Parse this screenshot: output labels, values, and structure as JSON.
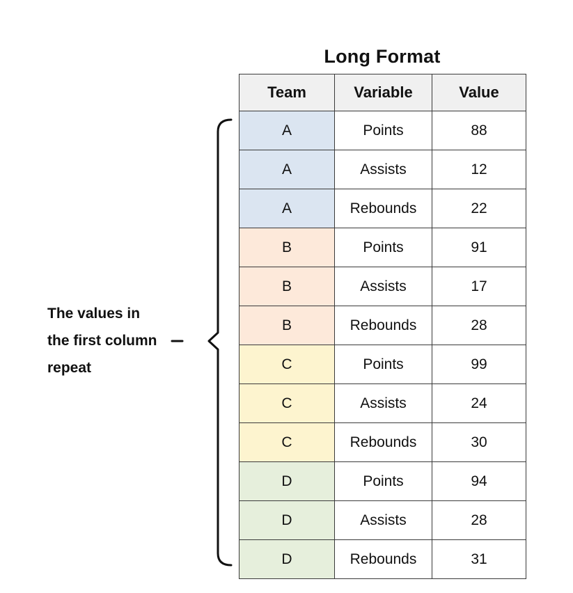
{
  "title": "Long Format",
  "annotation": {
    "line1": "The values in",
    "line2": "the first column",
    "line3": "repeat"
  },
  "table": {
    "headers": [
      "Team",
      "Variable",
      "Value"
    ],
    "rows": [
      {
        "team": "A",
        "variable": "Points",
        "value": "88"
      },
      {
        "team": "A",
        "variable": "Assists",
        "value": "12"
      },
      {
        "team": "A",
        "variable": "Rebounds",
        "value": "22"
      },
      {
        "team": "B",
        "variable": "Points",
        "value": "91"
      },
      {
        "team": "B",
        "variable": "Assists",
        "value": "17"
      },
      {
        "team": "B",
        "variable": "Rebounds",
        "value": "28"
      },
      {
        "team": "C",
        "variable": "Points",
        "value": "99"
      },
      {
        "team": "C",
        "variable": "Assists",
        "value": "24"
      },
      {
        "team": "C",
        "variable": "Rebounds",
        "value": "30"
      },
      {
        "team": "D",
        "variable": "Points",
        "value": "94"
      },
      {
        "team": "D",
        "variable": "Assists",
        "value": "28"
      },
      {
        "team": "D",
        "variable": "Rebounds",
        "value": "31"
      }
    ]
  },
  "colors": {
    "header_bg": "#f0f0f0",
    "border": "#3a3a3a",
    "brace": "#111111",
    "team_row_colors": {
      "A": "#dbe5f1",
      "B": "#fde9da",
      "C": "#fdf4cf",
      "D": "#e6efdc"
    }
  }
}
